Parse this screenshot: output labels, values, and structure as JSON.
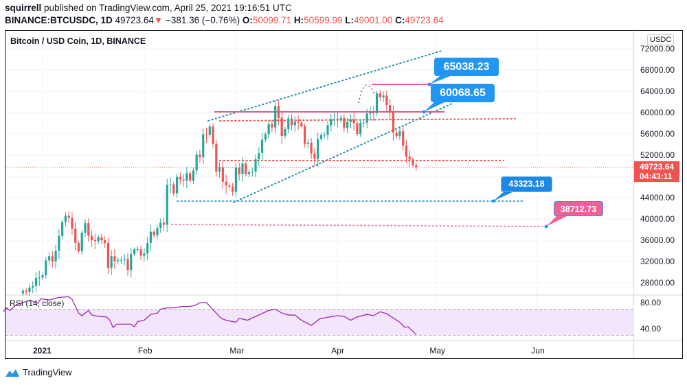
{
  "header": {
    "author": "squirrell",
    "published": "published on TradingView.com, April 25, 2021 19:16:51 UTC",
    "symbol": "BINANCE:BTCUSDC, 1D",
    "last": "49723.64",
    "change": "−381.36 (−0.76%)",
    "o_label": "O:",
    "o": "50099.71",
    "h_label": "H:",
    "h": "50599.99",
    "l_label": "L:",
    "l": "49001.00",
    "c_label": "C:",
    "c": "49723.64"
  },
  "chart_title": "Bitcoin / USD Coin, 1D, BINANCE",
  "currency": "USDC",
  "current_price": {
    "price": "49723.64",
    "countdown": "04:43:11"
  },
  "price_ticks": [
    "72000.00",
    "68000.00",
    "64000.00",
    "60000.00",
    "56000.00",
    "52000.00",
    "44000.00",
    "40000.00",
    "36000.00",
    "32000.00",
    "28000.00"
  ],
  "rsi": {
    "title": "RSI (14, close)",
    "ticks": [
      "80.00",
      "40.00"
    ]
  },
  "time_ticks": [
    "2021",
    "Feb",
    "Mar",
    "Apr",
    "May",
    "Jun"
  ],
  "annotations": {
    "label_65038": "65038.23",
    "label_60068": "60068.65",
    "label_43323": "43323.18",
    "label_38712": "38712.73"
  },
  "brand": "TradingView",
  "colors": {
    "up": "#26a69a",
    "down": "#ef5350",
    "blue": "#2196f3",
    "pink": "#e05c8a",
    "rsi": "#9c27b0"
  },
  "chart_data": {
    "type": "candlestick",
    "first_day": "2020-12-26",
    "closes": [
      26.5,
      26.3,
      27.1,
      27.4,
      28.9,
      29.0,
      29.4,
      32.2,
      33.0,
      32.0,
      34.0,
      36.8,
      39.4,
      40.6,
      40.2,
      38.2,
      35.5,
      33.9,
      37.4,
      39.2,
      36.8,
      36.0,
      35.8,
      36.6,
      36.0,
      35.5,
      30.8,
      33.0,
      32.1,
      32.3,
      32.3,
      32.5,
      30.4,
      33.4,
      34.3,
      34.3,
      33.1,
      33.5,
      35.5,
      37.6,
      36.9,
      38.3,
      39.3,
      38.9,
      46.4,
      46.5,
      44.8,
      47.9,
      47.4,
      47.2,
      48.6,
      47.2,
      49.1,
      52.1,
      51.6,
      55.9,
      55.8,
      57.4,
      54.1,
      48.9,
      49.7,
      47.0,
      46.3,
      46.1,
      45.1,
      49.6,
      48.4,
      50.4,
      48.4,
      48.8,
      48.9,
      51.2,
      52.4,
      54.9,
      55.9,
      57.8,
      57.2,
      61.2,
      59.0,
      55.6,
      56.9,
      58.9,
      57.6,
      58.3,
      58.1,
      57.4,
      54.1,
      54.3,
      52.3,
      51.3,
      55.0,
      55.8,
      55.8,
      57.6,
      58.8,
      58.8,
      58.7,
      59.0,
      57.1,
      58.2,
      58.7,
      58.0,
      56.0,
      58.1,
      58.1,
      59.8,
      60.0,
      59.9,
      63.6,
      62.9,
      63.2,
      61.4,
      60.0,
      56.2,
      55.6,
      56.5,
      53.8,
      51.7,
      51.2,
      50.1,
      49.72
    ],
    "close_unit": "thousand USDC",
    "ylim": [
      26000,
      74000
    ],
    "rsi_points": [
      [
        -12,
        66
      ],
      [
        -11,
        72
      ],
      [
        -10,
        68
      ],
      [
        -8,
        77
      ],
      [
        -6,
        80
      ],
      [
        -4,
        84
      ],
      [
        -1.5,
        79
      ],
      [
        -0.5,
        86
      ],
      [
        2,
        84
      ],
      [
        5,
        88
      ],
      [
        8,
        89
      ],
      [
        9,
        85
      ],
      [
        11,
        64
      ],
      [
        12,
        60
      ],
      [
        14,
        68
      ],
      [
        15,
        61
      ],
      [
        17,
        59
      ],
      [
        19.5,
        58
      ],
      [
        20.5,
        53
      ],
      [
        21.5,
        42
      ],
      [
        22.5,
        47
      ],
      [
        25,
        47
      ],
      [
        27,
        47
      ],
      [
        28,
        43
      ],
      [
        29,
        51
      ],
      [
        31,
        53
      ],
      [
        33,
        62
      ],
      [
        35,
        64
      ],
      [
        36,
        70
      ],
      [
        38,
        72
      ],
      [
        40,
        72
      ],
      [
        42.5,
        74
      ],
      [
        44.5,
        74
      ],
      [
        46,
        75
      ],
      [
        47,
        77
      ],
      [
        48,
        80
      ],
      [
        50,
        80
      ],
      [
        54.5,
        56
      ],
      [
        56,
        53
      ],
      [
        59,
        50
      ],
      [
        60,
        56
      ],
      [
        62.5,
        53
      ],
      [
        65.5,
        60
      ],
      [
        69,
        68
      ],
      [
        71,
        70
      ],
      [
        73,
        64
      ],
      [
        75,
        61
      ],
      [
        77,
        61
      ],
      [
        79,
        53
      ],
      [
        82,
        45
      ],
      [
        84.5,
        55
      ],
      [
        87.5,
        58
      ],
      [
        90,
        60
      ],
      [
        92,
        59
      ],
      [
        94,
        53
      ],
      [
        96,
        58
      ],
      [
        99,
        62
      ],
      [
        101,
        60
      ],
      [
        103,
        66
      ],
      [
        105,
        63
      ],
      [
        109,
        50
      ],
      [
        110.5,
        42
      ],
      [
        111.5,
        43
      ],
      [
        113,
        36
      ],
      [
        114,
        31
      ]
    ],
    "rsi_bands": [
      70,
      30
    ],
    "levels": [
      65038.23,
      60068.65,
      58500,
      51000,
      43323.18,
      38712.73
    ]
  }
}
